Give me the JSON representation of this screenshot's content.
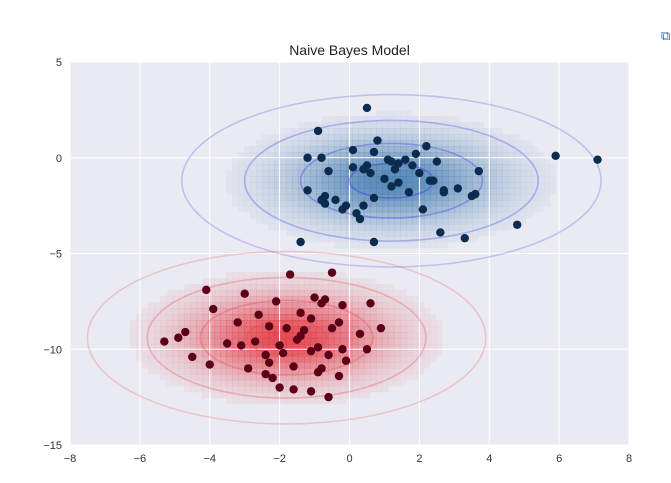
{
  "side_icon": "expand-output-icon",
  "colors": {
    "plot_background": "#eaeaf2",
    "grid": "#ffffff",
    "points_class_a": "#0b2c4f",
    "points_class_b": "#5c0018",
    "contour_class_a": "#3a3ae6",
    "contour_class_b": "#e64a4a",
    "density_class_a": "#2f6ea8",
    "density_class_b": "#e0202a"
  },
  "chart_data": {
    "type": "scatter",
    "title": "Naive Bayes Model",
    "xlabel": "",
    "ylabel": "",
    "xlim": [
      -8,
      8
    ],
    "ylim": [
      -15,
      5
    ],
    "x_ticks": [
      -8,
      -6,
      -4,
      -2,
      0,
      2,
      4,
      6,
      8
    ],
    "y_ticks": [
      5,
      0,
      -5,
      -10,
      -15
    ],
    "x_tick_labels": [
      "−8",
      "−6",
      "−4",
      "−2",
      "0",
      "2",
      "4",
      "6",
      "8"
    ],
    "y_tick_labels": [
      "5",
      "0",
      "−5",
      "−10",
      "−15"
    ],
    "grid": true,
    "legend": "none",
    "gaussians": [
      {
        "mean": [
          1.2,
          -1.2
        ],
        "std": [
          2.0,
          1.5
        ],
        "color_key": "class_a"
      },
      {
        "mean": [
          -1.8,
          -9.4
        ],
        "std": [
          1.9,
          1.5
        ],
        "color_key": "class_b"
      }
    ],
    "contour_levels_sigma": [
      0.6,
      1.3,
      2.1,
      3.0
    ],
    "series": [
      {
        "color_key": "class_a",
        "x": [
          0.5,
          -0.9,
          0.8,
          -1.2,
          -0.8,
          -0.6,
          0.1,
          0.7,
          1.1,
          1.4,
          1.6,
          2.2,
          2.5,
          1.8,
          1.0,
          0.4,
          0.6,
          1.3,
          2.0,
          2.3,
          2.7,
          3.1,
          3.7,
          5.9,
          7.1,
          -1.2,
          -0.7,
          -0.4,
          -0.1,
          0.2,
          0.4,
          0.7,
          1.2,
          1.7,
          2.1,
          2.6,
          3.5,
          3.6,
          -0.7,
          -0.2,
          0.3,
          2.7,
          3.3,
          4.8,
          -1.4,
          0.7,
          1.4,
          0.5,
          0.1,
          1.2,
          1.9,
          2.4,
          -0.8
        ],
        "y": [
          2.6,
          1.4,
          0.9,
          0.0,
          0.0,
          -0.7,
          0.4,
          0.3,
          -0.1,
          -0.3,
          -0.1,
          0.6,
          -0.2,
          -0.4,
          -1.1,
          -0.6,
          -0.8,
          -0.6,
          -0.8,
          -1.2,
          -1.8,
          -1.6,
          -0.7,
          0.1,
          -0.1,
          -1.7,
          -2.0,
          -2.2,
          -2.5,
          -2.9,
          -2.5,
          -2.1,
          -1.5,
          -1.8,
          -2.7,
          -3.9,
          -2.0,
          -1.9,
          -2.4,
          -2.7,
          -3.2,
          -1.7,
          -4.2,
          -3.5,
          -4.4,
          -4.4,
          -1.3,
          -0.4,
          -0.5,
          -0.2,
          0.2,
          -1.2,
          -2.2
        ]
      },
      {
        "color_key": "class_b",
        "x": [
          -1.7,
          -0.5,
          -4.1,
          -3.0,
          -2.1,
          -1.0,
          -0.7,
          -0.2,
          0.6,
          -3.9,
          -2.6,
          -1.4,
          -1.1,
          -0.3,
          -4.7,
          -3.2,
          -2.3,
          -1.8,
          -1.3,
          -0.5,
          0.3,
          0.9,
          -5.3,
          -4.9,
          -3.5,
          -2.7,
          -2.0,
          -1.5,
          -0.9,
          -0.2,
          -4.5,
          -3.1,
          -2.4,
          -1.9,
          -1.1,
          -0.6,
          -0.1,
          -4.0,
          -2.3,
          -1.6,
          -0.8,
          0.5,
          -0.9,
          -0.3,
          -2.4,
          -2.9,
          -1.1,
          -2.0,
          -0.6,
          -1.6,
          -2.2,
          -1.4,
          -0.8
        ],
        "y": [
          -6.1,
          -6.0,
          -6.9,
          -7.1,
          -7.5,
          -7.3,
          -7.4,
          -7.7,
          -7.6,
          -7.9,
          -8.2,
          -8.1,
          -8.4,
          -8.6,
          -9.1,
          -8.6,
          -8.8,
          -8.9,
          -9.0,
          -8.9,
          -9.2,
          -8.9,
          -9.6,
          -9.4,
          -9.7,
          -9.6,
          -9.8,
          -9.5,
          -9.9,
          -10.0,
          -10.4,
          -9.8,
          -10.3,
          -10.2,
          -10.1,
          -10.3,
          -10.6,
          -10.8,
          -10.7,
          -10.9,
          -11.0,
          -10.0,
          -11.2,
          -11.4,
          -11.3,
          -11.0,
          -12.2,
          -12.0,
          -12.5,
          -12.1,
          -11.5,
          -9.3,
          -7.6
        ]
      }
    ]
  }
}
